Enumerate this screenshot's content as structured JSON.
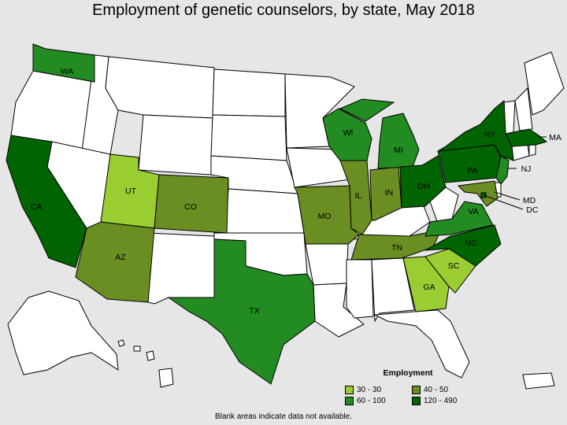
{
  "title": "Employment of genetic counselors, by state, May 2018",
  "footnote": "Blank areas indicate data not available.",
  "legend": {
    "title": "Employment",
    "items": [
      {
        "label": "30 - 30",
        "color": "#9acd32"
      },
      {
        "label": "40 - 50",
        "color": "#6b8e23"
      },
      {
        "label": "60 - 100",
        "color": "#228b22"
      },
      {
        "label": "120 - 490",
        "color": "#006400"
      }
    ]
  },
  "states": {
    "WA": {
      "label": "WA",
      "category": "60 - 100"
    },
    "CA": {
      "label": "CA",
      "category": "120 - 490"
    },
    "UT": {
      "label": "UT",
      "category": "30 - 30"
    },
    "AZ": {
      "label": "AZ",
      "category": "40 - 50"
    },
    "CO": {
      "label": "CO",
      "category": "40 - 50"
    },
    "TX": {
      "label": "TX",
      "category": "60 - 100"
    },
    "MO": {
      "label": "MO",
      "category": "40 - 50"
    },
    "IL": {
      "label": "IL",
      "category": "40 - 50"
    },
    "IN": {
      "label": "IN",
      "category": "40 - 50"
    },
    "WI": {
      "label": "WI",
      "category": "60 - 100"
    },
    "MI": {
      "label": "MI",
      "category": "60 - 100"
    },
    "OH": {
      "label": "OH",
      "category": "120 - 490"
    },
    "TN": {
      "label": "TN",
      "category": "40 - 50"
    },
    "GA": {
      "label": "GA",
      "category": "30 - 30"
    },
    "SC": {
      "label": "SC",
      "category": "30 - 30"
    },
    "NC": {
      "label": "NC",
      "category": "120 - 490"
    },
    "VA": {
      "label": "VA",
      "category": "60 - 100"
    },
    "PA": {
      "label": "PA",
      "category": "120 - 490"
    },
    "NY": {
      "label": "NY",
      "category": "120 - 490"
    },
    "MA": {
      "label": "MA",
      "category": "120 - 490"
    },
    "NJ": {
      "label": "NJ",
      "category": "60 - 100"
    },
    "MD": {
      "label": "MD",
      "category": "40 - 50"
    },
    "DC": {
      "label": "DC",
      "category": "120 - 490"
    }
  }
}
